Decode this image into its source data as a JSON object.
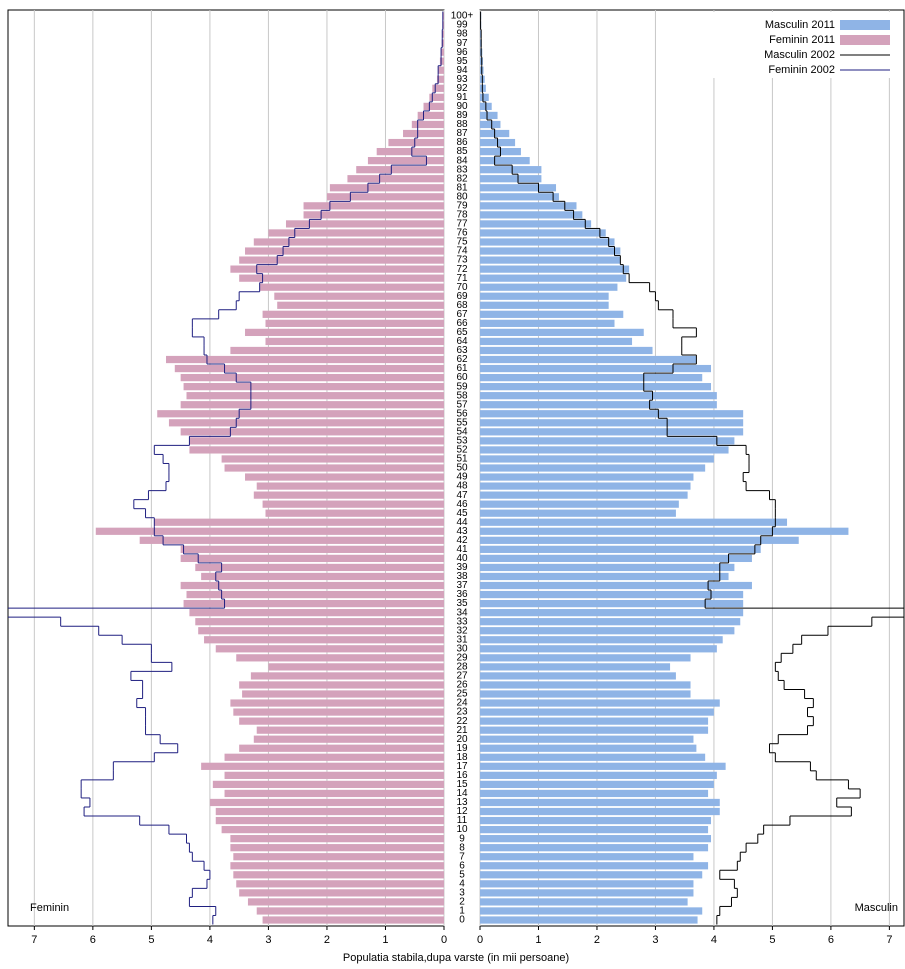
{
  "chart_data": {
    "type": "pyramid",
    "xlabel": "Populatia stabila,dupa varste (in mii persoane)",
    "left_label": "Feminin",
    "right_label": "Masculin",
    "categories": [
      "0",
      "1",
      "2",
      "3",
      "4",
      "5",
      "6",
      "7",
      "8",
      "9",
      "10",
      "11",
      "12",
      "13",
      "14",
      "15",
      "16",
      "17",
      "18",
      "19",
      "20",
      "21",
      "22",
      "23",
      "24",
      "25",
      "26",
      "27",
      "28",
      "29",
      "30",
      "31",
      "32",
      "33",
      "34",
      "35",
      "36",
      "37",
      "38",
      "39",
      "40",
      "41",
      "42",
      "43",
      "44",
      "45",
      "46",
      "47",
      "48",
      "49",
      "50",
      "51",
      "52",
      "53",
      "54",
      "55",
      "56",
      "57",
      "58",
      "59",
      "60",
      "61",
      "62",
      "63",
      "64",
      "65",
      "66",
      "67",
      "68",
      "69",
      "70",
      "71",
      "72",
      "73",
      "74",
      "75",
      "76",
      "77",
      "78",
      "79",
      "80",
      "81",
      "82",
      "83",
      "84",
      "85",
      "86",
      "87",
      "88",
      "89",
      "90",
      "91",
      "92",
      "93",
      "94",
      "95",
      "96",
      "97",
      "98",
      "99",
      "100+"
    ],
    "left_xlim": [
      0,
      7.45
    ],
    "left_xticks": [
      0,
      1,
      2,
      3,
      4,
      5,
      6,
      7
    ],
    "right_xlim": [
      0,
      7.25
    ],
    "right_xticks": [
      0,
      1,
      2,
      3,
      4,
      5,
      6,
      7
    ],
    "grid": true,
    "legend": "upper right",
    "series": [
      {
        "name": "Masculin 2011",
        "side": "right",
        "kind": "bar",
        "color": "#8fb4e6",
        "values": [
          3.72,
          3.8,
          3.55,
          3.65,
          3.65,
          3.8,
          3.9,
          3.65,
          3.9,
          3.95,
          3.9,
          3.95,
          4.1,
          4.1,
          3.9,
          4.0,
          4.05,
          4.2,
          3.85,
          3.7,
          3.65,
          3.9,
          3.9,
          4.0,
          4.1,
          3.6,
          3.6,
          3.35,
          3.25,
          3.6,
          4.05,
          4.15,
          4.35,
          4.45,
          4.5,
          4.5,
          4.5,
          4.65,
          4.25,
          4.35,
          4.65,
          4.8,
          5.45,
          6.3,
          5.25,
          3.35,
          3.4,
          3.55,
          3.6,
          3.65,
          3.85,
          4.0,
          4.25,
          4.35,
          4.5,
          4.5,
          4.5,
          4.05,
          4.05,
          3.95,
          3.8,
          3.95,
          3.7,
          2.95,
          2.6,
          2.8,
          2.3,
          2.45,
          2.2,
          2.2,
          2.35,
          2.5,
          2.55,
          2.4,
          2.4,
          2.3,
          2.15,
          1.9,
          1.75,
          1.65,
          1.35,
          1.3,
          1.05,
          1.05,
          0.85,
          0.7,
          0.6,
          0.5,
          0.35,
          0.3,
          0.2,
          0.15,
          0.1,
          0.08,
          0.06,
          0.05,
          0.04,
          0.03,
          0.02,
          0.02,
          0.02
        ]
      },
      {
        "name": "Feminin 2011",
        "side": "left",
        "kind": "bar",
        "color": "#d4a2bb",
        "values": [
          3.1,
          3.2,
          3.35,
          3.5,
          3.55,
          3.6,
          3.65,
          3.6,
          3.65,
          3.65,
          3.8,
          3.9,
          3.9,
          4.0,
          3.75,
          3.95,
          3.75,
          4.15,
          3.75,
          3.5,
          3.25,
          3.2,
          3.5,
          3.6,
          3.65,
          3.45,
          3.5,
          3.3,
          3.0,
          3.55,
          3.9,
          4.1,
          4.2,
          4.25,
          4.35,
          4.45,
          4.4,
          4.5,
          4.15,
          4.25,
          4.5,
          4.5,
          5.2,
          5.95,
          4.95,
          3.05,
          3.1,
          3.25,
          3.2,
          3.4,
          3.75,
          3.8,
          4.35,
          4.35,
          4.5,
          4.7,
          4.9,
          4.5,
          4.4,
          4.45,
          4.5,
          4.6,
          4.75,
          3.65,
          3.05,
          3.4,
          3.05,
          3.1,
          2.85,
          2.9,
          3.15,
          3.5,
          3.65,
          3.5,
          3.4,
          3.25,
          3.0,
          2.7,
          2.4,
          2.4,
          2.0,
          1.95,
          1.65,
          1.5,
          1.3,
          1.15,
          0.95,
          0.7,
          0.55,
          0.45,
          0.35,
          0.25,
          0.2,
          0.12,
          0.1,
          0.07,
          0.05,
          0.04,
          0.03,
          0.02,
          0.02
        ]
      },
      {
        "name": "Masculin 2002",
        "side": "right",
        "kind": "step",
        "color": "#000000",
        "values": [
          4.05,
          4.1,
          4.3,
          4.4,
          4.35,
          4.1,
          4.4,
          4.45,
          4.55,
          4.75,
          4.85,
          5.3,
          6.35,
          6.1,
          6.5,
          6.3,
          5.75,
          5.65,
          5.05,
          4.95,
          5.1,
          5.6,
          5.7,
          5.6,
          5.7,
          5.55,
          5.2,
          5.1,
          5.05,
          5.15,
          5.35,
          5.5,
          5.95,
          6.7,
          7.6,
          3.85,
          3.95,
          3.9,
          4.1,
          4.1,
          4.25,
          4.7,
          4.8,
          5.0,
          5.05,
          5.05,
          5.05,
          4.95,
          4.55,
          4.5,
          4.6,
          4.6,
          4.55,
          4.05,
          3.2,
          3.2,
          3.05,
          2.9,
          2.95,
          2.8,
          2.8,
          3.3,
          3.7,
          3.45,
          3.45,
          3.7,
          3.3,
          3.3,
          3.05,
          3.0,
          2.9,
          2.55,
          2.45,
          2.4,
          2.3,
          2.2,
          2.05,
          1.8,
          1.6,
          1.45,
          1.25,
          1.0,
          0.65,
          0.55,
          0.25,
          0.35,
          0.3,
          0.25,
          0.2,
          0.12,
          0.1,
          0.05,
          0.04,
          0.04,
          0.03,
          0.03,
          0.02,
          0.02,
          0.02,
          0.01,
          0.01
        ]
      },
      {
        "name": "Feminin 2002",
        "side": "left",
        "kind": "step",
        "color": "#1f1f80",
        "values": [
          3.95,
          3.9,
          4.35,
          4.3,
          4.05,
          4.0,
          4.1,
          4.3,
          4.35,
          4.4,
          4.7,
          5.2,
          6.15,
          6.05,
          6.2,
          6.2,
          5.65,
          5.65,
          4.95,
          4.55,
          4.85,
          5.1,
          5.1,
          5.1,
          5.25,
          5.15,
          5.15,
          5.35,
          4.65,
          5.0,
          5.0,
          5.5,
          5.9,
          6.55,
          7.6,
          3.75,
          3.8,
          3.85,
          3.9,
          3.8,
          4.2,
          4.45,
          4.8,
          4.95,
          4.95,
          5.1,
          5.3,
          5.05,
          4.75,
          4.7,
          4.7,
          4.8,
          4.95,
          4.35,
          3.65,
          3.55,
          3.5,
          3.3,
          3.3,
          3.3,
          3.55,
          3.75,
          4.05,
          4.1,
          4.1,
          4.3,
          4.3,
          3.85,
          3.55,
          3.5,
          3.15,
          3.1,
          3.2,
          2.85,
          2.75,
          2.65,
          2.55,
          2.3,
          2.1,
          1.95,
          1.6,
          1.3,
          1.1,
          0.9,
          0.3,
          0.55,
          0.5,
          0.45,
          0.45,
          0.35,
          0.25,
          0.2,
          0.15,
          0.1,
          0.1,
          0.05,
          0.05,
          0.03,
          0.03,
          0.02,
          0.02
        ]
      }
    ]
  }
}
